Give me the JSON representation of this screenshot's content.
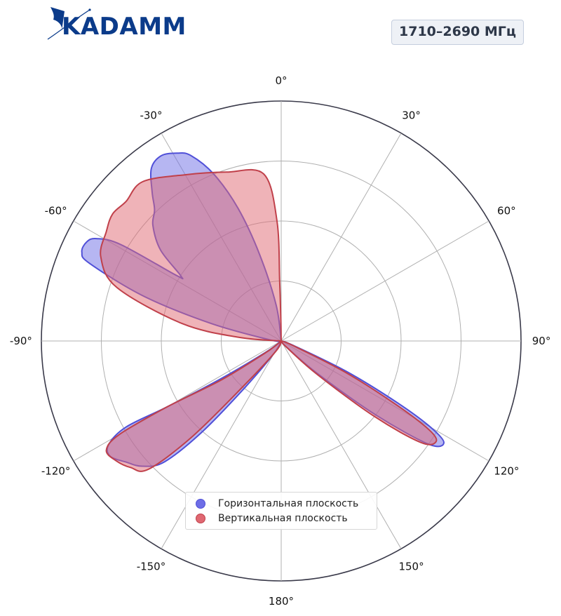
{
  "brand": {
    "name": "KADAMM",
    "color": "#0b3b8a"
  },
  "frequency_label": "1710–2690 МГц",
  "chart_data": {
    "type": "polar-area",
    "angle_zero": "top",
    "angle_direction": "clockwise",
    "theta_ticks": [
      {
        "angle": 0,
        "label": "0°"
      },
      {
        "angle": 30,
        "label": "30°"
      },
      {
        "angle": 60,
        "label": "60°"
      },
      {
        "angle": 90,
        "label": "90°"
      },
      {
        "angle": 120,
        "label": "120°"
      },
      {
        "angle": 150,
        "label": "150°"
      },
      {
        "angle": 180,
        "label": "180°"
      },
      {
        "angle": -150,
        "label": "-150°"
      },
      {
        "angle": -120,
        "label": "-120°"
      },
      {
        "angle": -90,
        "label": "-90°"
      },
      {
        "angle": -60,
        "label": "-60°"
      },
      {
        "angle": -30,
        "label": "-30°"
      }
    ],
    "r_range": [
      0,
      1
    ],
    "r_grid": [
      0.25,
      0.5,
      0.75,
      1
    ],
    "grid": true,
    "legend_position": "bottom-center",
    "series": [
      {
        "name": "Горизонтальная плоскость",
        "color": "#5050d8",
        "fill": "#6e6ee6",
        "points": [
          [
            0,
            0
          ],
          [
            -8,
            0.15
          ],
          [
            -14,
            0.37
          ],
          [
            -18,
            0.58
          ],
          [
            -22,
            0.75
          ],
          [
            -26,
            0.86
          ],
          [
            -29,
            0.895
          ],
          [
            -33,
            0.92
          ],
          [
            -37,
            0.9
          ],
          [
            -41,
            0.82
          ],
          [
            -44,
            0.76
          ],
          [
            -48,
            0.72
          ],
          [
            -53,
            0.63
          ],
          [
            -57,
            0.5
          ],
          [
            -58,
            0.52
          ],
          [
            -59,
            0.78
          ],
          [
            -61,
            0.88
          ],
          [
            -63,
            0.91
          ],
          [
            -66,
            0.91
          ],
          [
            -68,
            0.86
          ],
          [
            -72,
            0.6
          ],
          [
            -76,
            0.3
          ],
          [
            -84,
            0.05
          ],
          [
            0,
            0
          ],
          [
            -150,
            0.06
          ],
          [
            -142,
            0.25
          ],
          [
            -139,
            0.5
          ],
          [
            -136,
            0.7
          ],
          [
            -132,
            0.78
          ],
          [
            -128,
            0.82
          ],
          [
            -124,
            0.86
          ],
          [
            -121,
            0.84
          ],
          [
            -119,
            0.74
          ],
          [
            -120,
            0.55
          ],
          [
            -122,
            0.3
          ],
          [
            -126,
            0.08
          ],
          [
            0,
            0
          ],
          [
            110,
            0.05
          ],
          [
            115,
            0.3
          ],
          [
            118,
            0.55
          ],
          [
            120,
            0.72
          ],
          [
            122,
            0.8
          ],
          [
            125,
            0.75
          ],
          [
            128,
            0.5
          ],
          [
            132,
            0.2
          ],
          [
            140,
            0.03
          ]
        ]
      },
      {
        "name": "Вертикальная плоскость",
        "color": "#c0404a",
        "fill": "#e06872",
        "points": [
          [
            0,
            0
          ],
          [
            -1,
            0.1
          ],
          [
            -1.5,
            0.25
          ],
          [
            -2,
            0.5
          ],
          [
            -6,
            0.7
          ],
          [
            -18,
            0.74
          ],
          [
            -30,
            0.8
          ],
          [
            -41,
            0.88
          ],
          [
            -48,
            0.87
          ],
          [
            -53,
            0.88
          ],
          [
            -58,
            0.86
          ],
          [
            -65,
            0.83
          ],
          [
            -72,
            0.72
          ],
          [
            -80,
            0.42
          ],
          [
            -85,
            0.18
          ],
          [
            0,
            0
          ],
          [
            -152,
            0.05
          ],
          [
            -140,
            0.25
          ],
          [
            -137,
            0.55
          ],
          [
            -134,
            0.77
          ],
          [
            -130,
            0.82
          ],
          [
            -126,
            0.85
          ],
          [
            -122,
            0.86
          ],
          [
            -120,
            0.78
          ],
          [
            -120,
            0.55
          ],
          [
            -123,
            0.3
          ],
          [
            -127,
            0.08
          ],
          [
            0,
            0
          ],
          [
            111,
            0.05
          ],
          [
            116,
            0.3
          ],
          [
            119,
            0.55
          ],
          [
            121,
            0.72
          ],
          [
            123,
            0.77
          ],
          [
            126,
            0.72
          ],
          [
            129,
            0.5
          ],
          [
            133,
            0.2
          ],
          [
            140,
            0.03
          ]
        ]
      }
    ]
  }
}
